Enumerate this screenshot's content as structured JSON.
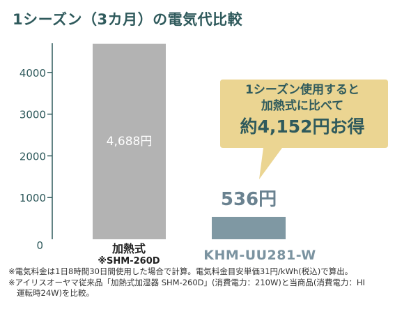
{
  "title": "1シーズン（3カ月）の電気代比較",
  "chart_data": {
    "type": "bar",
    "categories": [
      "加熱式",
      "KHM-UU281-W"
    ],
    "category_sublabels": [
      "※SHM-260D",
      ""
    ],
    "values": [
      4688,
      536
    ],
    "value_labels": [
      "4,688円",
      "536円"
    ],
    "bar_colors": [
      "#b3b3b3",
      "#7f98a3"
    ],
    "ylim": [
      0,
      4700
    ],
    "yticks": [
      0,
      1000,
      2000,
      3000,
      4000
    ],
    "ytick_labels": [
      "0",
      "1000",
      "2000",
      "3000",
      "4000"
    ],
    "grid": false,
    "xlabel": "",
    "ylabel": ""
  },
  "callout": {
    "line1": "1シーズン使用すると",
    "line2": "加熱式に比べて",
    "line3": "約4,152円お得",
    "color": "#ebd592"
  },
  "notes": [
    "※電気料金は1日8時間30日間使用した場合で計算。電気料金目安単価31円/kWh(税込)で算出。",
    "※アイリスオーヤマ従来品「加熱式加湿器 SHM-260D」(消費電力：210W)と当商品(消費電力：HI",
    "運転時24W)を比較。"
  ],
  "colors": {
    "accent": "#2f5a5c",
    "axis": "#2f5a5c"
  }
}
